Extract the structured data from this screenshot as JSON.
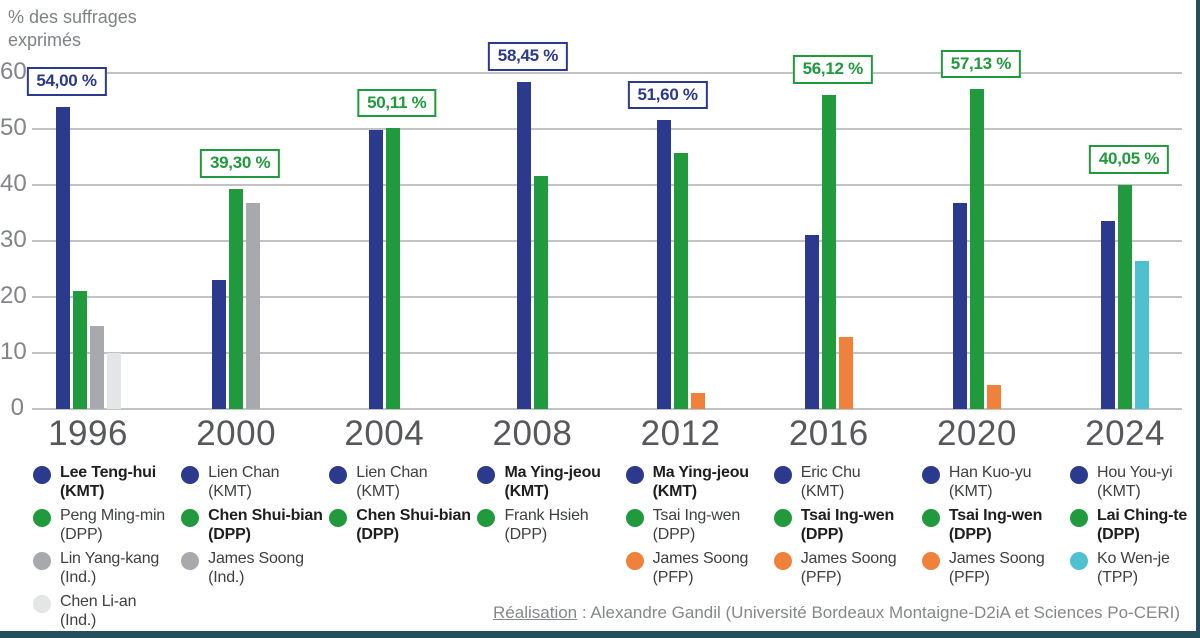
{
  "page": {
    "axis_title": "% des suffrages exprimés"
  },
  "footer": {
    "realisation_label": "Réalisation",
    "credit_text": " : Alexandre Gandil (Université Bordeaux Montaigne-D2iA et Sciences Po-CERI)"
  },
  "chart_data": {
    "type": "bar",
    "title": "",
    "ylabel": "% des suffrages exprimés",
    "xlabel": "",
    "ylim": [
      0,
      60
    ],
    "yticks": [
      0,
      10,
      20,
      30,
      40,
      50,
      60
    ],
    "grid": true,
    "legend_position": "below-each-year-group",
    "party_colors": {
      "KMT": "#2b3a8c",
      "DPP": "#219a3d",
      "IND": "#a7a9ac",
      "IND_LIGHT": "#e4e5e6",
      "PFP": "#f0813a",
      "TPP": "#4ec0cf"
    },
    "groups": [
      {
        "year": "1996",
        "bars": [
          {
            "candidate": "Lee Teng-hui",
            "party": "(KMT)",
            "color": "KMT",
            "value": 54.0,
            "winner": true,
            "label": "54,00 %"
          },
          {
            "candidate": "Peng Ming-min",
            "party": "(DPP)",
            "color": "DPP",
            "value": 21.13,
            "winner": false
          },
          {
            "candidate": "Lin Yang-kang",
            "party": "(Ind.)",
            "color": "IND",
            "value": 14.9,
            "winner": false
          },
          {
            "candidate": "Chen Li-an",
            "party": "(Ind.)",
            "color": "IND_LIGHT",
            "value": 9.98,
            "winner": false
          }
        ]
      },
      {
        "year": "2000",
        "bars": [
          {
            "candidate": "Lien Chan",
            "party": "(KMT)",
            "color": "KMT",
            "value": 23.1,
            "winner": false
          },
          {
            "candidate": "Chen Shui-bian",
            "party": "(DPP)",
            "color": "DPP",
            "value": 39.3,
            "winner": true,
            "label": "39,30 %"
          },
          {
            "candidate": "James Soong",
            "party": "(Ind.)",
            "color": "IND",
            "value": 36.84,
            "winner": false
          }
        ]
      },
      {
        "year": "2004",
        "bars": [
          {
            "candidate": "Lien Chan",
            "party": "(KMT)",
            "color": "KMT",
            "value": 49.89,
            "winner": false
          },
          {
            "candidate": "Chen Shui-bian",
            "party": "(DPP)",
            "color": "DPP",
            "value": 50.11,
            "winner": true,
            "label": "50,11 %"
          }
        ]
      },
      {
        "year": "2008",
        "bars": [
          {
            "candidate": "Ma Ying-jeou",
            "party": "(KMT)",
            "color": "KMT",
            "value": 58.45,
            "winner": true,
            "label": "58,45 %"
          },
          {
            "candidate": "Frank Hsieh",
            "party": "(DPP)",
            "color": "DPP",
            "value": 41.55,
            "winner": false
          }
        ]
      },
      {
        "year": "2012",
        "bars": [
          {
            "candidate": "Ma Ying-jeou",
            "party": "(KMT)",
            "color": "KMT",
            "value": 51.6,
            "winner": true,
            "label": "51,60 %"
          },
          {
            "candidate": "Tsai Ing-wen",
            "party": "(DPP)",
            "color": "DPP",
            "value": 45.63,
            "winner": false
          },
          {
            "candidate": "James Soong",
            "party": "(PFP)",
            "color": "PFP",
            "value": 2.77,
            "winner": false
          }
        ]
      },
      {
        "year": "2016",
        "bars": [
          {
            "candidate": "Eric Chu",
            "party": "(KMT)",
            "color": "KMT",
            "value": 31.04,
            "winner": false
          },
          {
            "candidate": "Tsai Ing-wen",
            "party": "(DPP)",
            "color": "DPP",
            "value": 56.12,
            "winner": true,
            "label": "56,12 %"
          },
          {
            "candidate": "James Soong",
            "party": "(PFP)",
            "color": "PFP",
            "value": 12.84,
            "winner": false
          }
        ]
      },
      {
        "year": "2020",
        "bars": [
          {
            "candidate": "Han Kuo-yu",
            "party": "(KMT)",
            "color": "KMT",
            "value": 36.8,
            "winner": false
          },
          {
            "candidate": "Tsai Ing-wen",
            "party": "(DPP)",
            "color": "DPP",
            "value": 57.13,
            "winner": true,
            "label": "57,13 %"
          },
          {
            "candidate": "James Soong",
            "party": "(PFP)",
            "color": "PFP",
            "value": 4.26,
            "winner": false
          }
        ]
      },
      {
        "year": "2024",
        "bars": [
          {
            "candidate": "Hou You-yi",
            "party": "(KMT)",
            "color": "KMT",
            "value": 33.49,
            "winner": false
          },
          {
            "candidate": "Lai Ching-te",
            "party": "(DPP)",
            "color": "DPP",
            "value": 40.05,
            "winner": true,
            "label": "40,05 %"
          },
          {
            "candidate": "Ko Wen-je",
            "party": "(TPP)",
            "color": "TPP",
            "value": 26.46,
            "winner": false
          }
        ]
      }
    ]
  }
}
